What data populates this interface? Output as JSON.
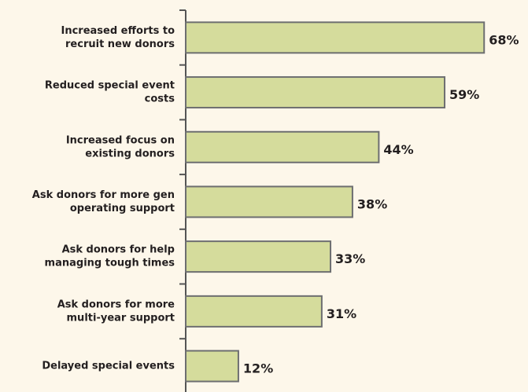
{
  "chart_data": {
    "type": "bar",
    "orientation": "horizontal",
    "categories": [
      [
        "Increased efforts to",
        "recruit new donors"
      ],
      [
        "Reduced special event",
        "costs"
      ],
      [
        "Increased focus on",
        "existing donors"
      ],
      [
        "Ask donors for more gen",
        "operating support"
      ],
      [
        "Ask donors for help",
        "managing tough times"
      ],
      [
        "Ask donors for more",
        "multi-year support"
      ],
      [
        "Delayed special events"
      ]
    ],
    "values": [
      68,
      59,
      44,
      38,
      33,
      31,
      12
    ],
    "value_labels": [
      "68%",
      "59%",
      "44%",
      "38%",
      "33%",
      "31%",
      "12%"
    ],
    "color": "#d5dc9c",
    "xlim": [
      0,
      78
    ]
  }
}
